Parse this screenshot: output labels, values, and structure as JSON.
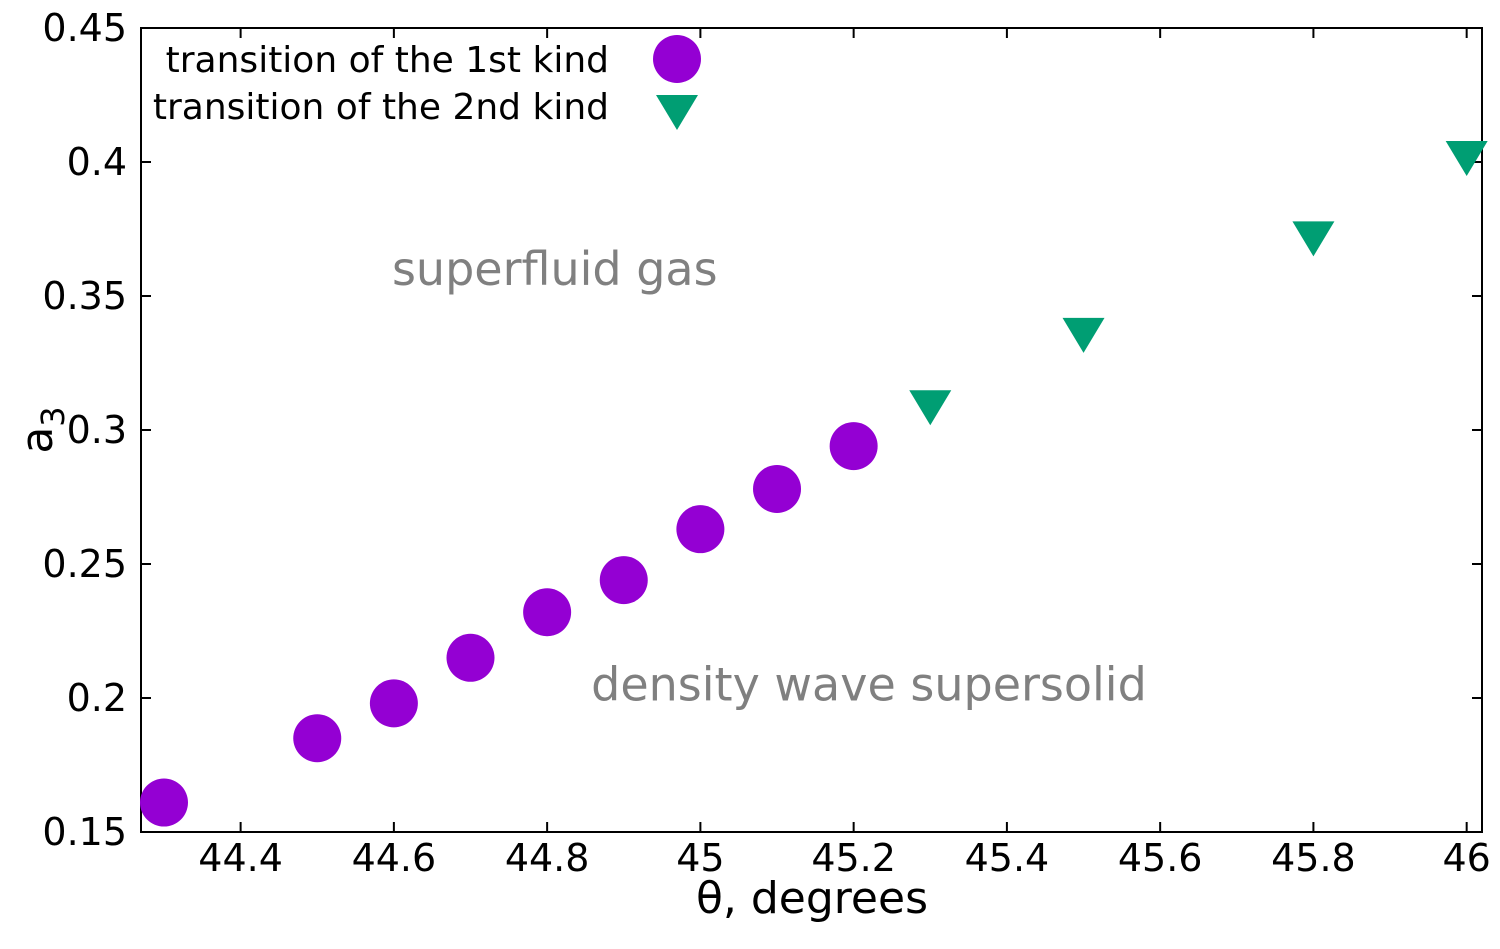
{
  "chart_data": {
    "type": "scatter",
    "title": "",
    "xlabel": "θ, degrees",
    "ylabel": "a",
    "ylabel_subscript": "3",
    "xlim": [
      44.27,
      46.02
    ],
    "ylim": [
      0.15,
      0.45
    ],
    "grid": false,
    "legend_position": "top-left",
    "x_ticks": [
      {
        "value": 44.4,
        "label": "44.4"
      },
      {
        "value": 44.6,
        "label": "44.6"
      },
      {
        "value": 44.8,
        "label": "44.8"
      },
      {
        "value": 45.0,
        "label": "45"
      },
      {
        "value": 45.2,
        "label": "45.2"
      },
      {
        "value": 45.4,
        "label": "45.4"
      },
      {
        "value": 45.6,
        "label": "45.6"
      },
      {
        "value": 45.8,
        "label": "45.8"
      },
      {
        "value": 46.0,
        "label": "46"
      }
    ],
    "y_ticks": [
      {
        "value": 0.15,
        "label": "0.15"
      },
      {
        "value": 0.2,
        "label": "0.2"
      },
      {
        "value": 0.25,
        "label": "0.25"
      },
      {
        "value": 0.3,
        "label": "0.3"
      },
      {
        "value": 0.35,
        "label": "0.35"
      },
      {
        "value": 0.4,
        "label": "0.4"
      },
      {
        "value": 0.45,
        "label": "0.45"
      }
    ],
    "series": [
      {
        "name": "transition of the 1st kind",
        "marker": "circle",
        "color": "#9400d3",
        "points": [
          {
            "x": 44.3,
            "y": 0.161
          },
          {
            "x": 44.5,
            "y": 0.185
          },
          {
            "x": 44.6,
            "y": 0.198
          },
          {
            "x": 44.7,
            "y": 0.215
          },
          {
            "x": 44.8,
            "y": 0.232
          },
          {
            "x": 44.9,
            "y": 0.244
          },
          {
            "x": 45.0,
            "y": 0.263
          },
          {
            "x": 45.1,
            "y": 0.278
          },
          {
            "x": 45.2,
            "y": 0.294
          }
        ]
      },
      {
        "name": "transition of the 2nd kind",
        "marker": "triangle-down",
        "color": "#009e73",
        "points": [
          {
            "x": 45.3,
            "y": 0.31
          },
          {
            "x": 45.5,
            "y": 0.337
          },
          {
            "x": 45.8,
            "y": 0.373
          },
          {
            "x": 46.0,
            "y": 0.403
          }
        ]
      }
    ],
    "annotations": [
      {
        "text": "superfluid gas",
        "x": 44.81,
        "y": 0.36
      },
      {
        "text": "density wave supersolid",
        "x": 45.22,
        "y": 0.205
      }
    ]
  }
}
